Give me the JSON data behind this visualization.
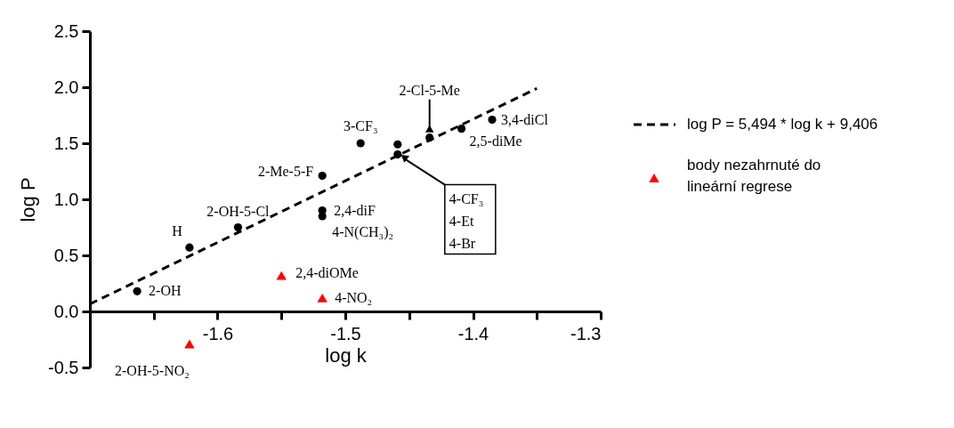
{
  "chart_data": {
    "type": "scatter",
    "xlabel": "log k",
    "ylabel": "log P",
    "xlim": [
      -1.7,
      -1.3
    ],
    "ylim": [
      -0.5,
      2.5
    ],
    "xticks": [
      {
        "value": -1.7,
        "label": null
      },
      {
        "value": -1.65,
        "label": null
      },
      -1.6,
      {
        "value": -1.55,
        "label": null
      },
      -1.5,
      {
        "value": -1.45,
        "label": null
      },
      -1.4,
      {
        "value": -1.35,
        "label": null
      },
      -1.3
    ],
    "yticks": [
      -0.5,
      {
        "value": 0,
        "label": "0.0"
      },
      0.5,
      {
        "value": 1,
        "label": "1.0"
      },
      1.5,
      {
        "value": 2,
        "label": "2.0"
      },
      2.5
    ],
    "grid": false,
    "legend": "right",
    "series": [
      {
        "type": "line",
        "name": "log P = 5,494 * log k + 9,406",
        "color": "#000000",
        "line_style": "dashed",
        "marker": "none",
        "x": [
          -1.7,
          -1.35
        ],
        "values": [
          0.066,
          1.989
        ]
      },
      {
        "type": "scatter",
        "color": "#000000",
        "marker": "circle",
        "x": [
          -1.663,
          -1.622,
          -1.584,
          -1.518,
          -1.518,
          -1.518,
          -1.488,
          -1.459,
          -1.459,
          -1.434,
          -1.409,
          -1.385
        ],
        "values": [
          0.18,
          0.57,
          0.75,
          1.21,
          0.9,
          0.85,
          1.5,
          1.49,
          1.4,
          1.55,
          1.63,
          1.71
        ]
      },
      {
        "type": "scatter",
        "name": "body nezahrnuté do lineární regrese",
        "color": "#ff0000",
        "marker": "triangle",
        "x": [
          -1.55,
          -1.518,
          -1.622
        ],
        "values": [
          0.32,
          0.12,
          -0.29
        ]
      }
    ],
    "annotations": [
      {
        "text": "2-OH",
        "x": -1.663,
        "y": 0.18
      },
      {
        "text": "H",
        "x": -1.622,
        "y": 0.57
      },
      {
        "text": "2-OH-5-Cl",
        "x": -1.584,
        "y": 0.75
      },
      {
        "text": "2-Me-5-F",
        "x": -1.518,
        "y": 1.21
      },
      {
        "text": "2,4-diF",
        "x": -1.518,
        "y": 0.9
      },
      {
        "text": "4-N(CH₃)₂",
        "x": -1.518,
        "y": 0.85
      },
      {
        "text": "3-CF₃",
        "x": -1.488,
        "y": 1.5
      },
      {
        "text": "2-Cl-5-Me",
        "x": -1.434,
        "y": 1.55
      },
      {
        "text": "2,5-diMe",
        "x": -1.409,
        "y": 1.63
      },
      {
        "text": "3,4-diCl",
        "x": -1.385,
        "y": 1.71
      },
      {
        "text": "4-CF₃\n4-Et\n4-Br",
        "x": -1.459,
        "y": 1.4
      },
      {
        "text": "2,4-diOMe",
        "x": -1.55,
        "y": 0.32
      },
      {
        "text": "4-NO₂",
        "x": -1.518,
        "y": 0.12
      },
      {
        "text": "2-OH-5-NO₂",
        "x": -1.622,
        "y": -0.29
      }
    ]
  }
}
